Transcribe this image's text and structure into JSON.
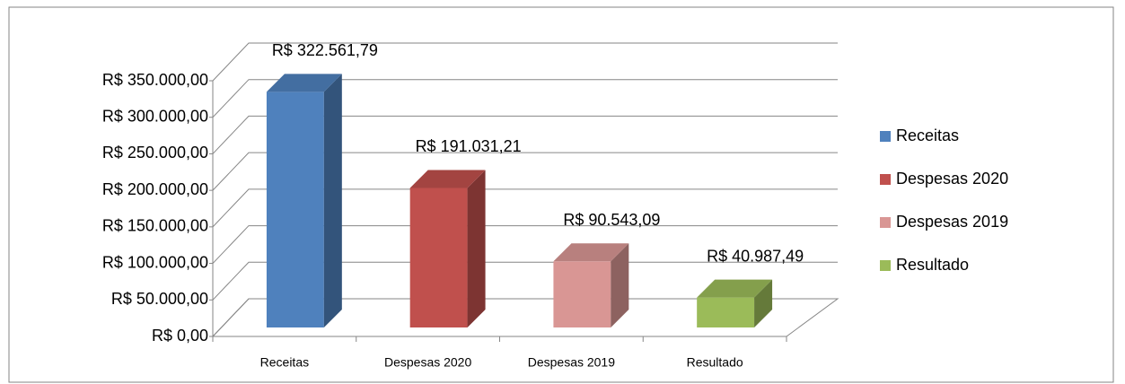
{
  "chart_data": {
    "type": "bar3d",
    "categories": [
      "Receitas",
      "Despesas 2020",
      "Despesas 2019",
      "Resultado"
    ],
    "values": [
      322561.79,
      191031.21,
      90543.09,
      40987.49
    ],
    "value_labels": [
      "R$ 322.561,79",
      "R$ 191.031,21",
      "R$ 90.543,09",
      "R$ 40.987,49"
    ],
    "colors": [
      "#4f81bd",
      "#c0504d",
      "#d99694",
      "#9bbb59"
    ],
    "ylim": [
      0,
      350000
    ],
    "yticks": [
      {
        "value": 0,
        "label": "R$ 0,00"
      },
      {
        "value": 50000,
        "label": "R$ 50.000,00"
      },
      {
        "value": 100000,
        "label": "R$ 100.000,00"
      },
      {
        "value": 150000,
        "label": "R$ 150.000,00"
      },
      {
        "value": 200000,
        "label": "R$ 200.000,00"
      },
      {
        "value": 250000,
        "label": "R$ 250.000,00"
      },
      {
        "value": 300000,
        "label": "R$ 300.000,00"
      },
      {
        "value": 350000,
        "label": "R$ 350.000,00"
      }
    ],
    "grid": true,
    "legend": "right"
  }
}
